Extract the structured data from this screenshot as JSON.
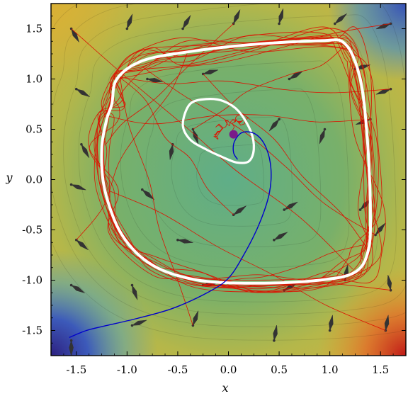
{
  "chart_data": {
    "type": "contour plot with vector field and trajectories",
    "xlabel": "x",
    "ylabel": "y",
    "xlim": [
      -1.75,
      1.75
    ],
    "ylim": [
      -1.75,
      1.75
    ],
    "xticks": [
      -1.5,
      -1.0,
      -0.5,
      0.0,
      0.5,
      1.0,
      1.5
    ],
    "yticks": [
      -1.5,
      -1.0,
      -0.5,
      0.0,
      0.5,
      1.0,
      1.5
    ],
    "xtick_labels": [
      "-1.5",
      "-1.0",
      "-0.5",
      "0.0",
      "0.5",
      "1.0",
      "1.5"
    ],
    "ytick_labels": [
      "-1.5",
      "-1.0",
      "-0.5",
      "0.0",
      "0.5",
      "1.0",
      "1.5"
    ],
    "grid": false,
    "legend": "none",
    "colors": {
      "limit_cycle": "#ffffff",
      "deterministic_trajectory": "#0000cc",
      "stochastic_trajectories": "#dd1100",
      "fixed_point": "#7a1a8a",
      "arrows": "#333333"
    },
    "outer_limit_cycle": [
      [
        -1.15,
        0.75
      ],
      [
        -1.1,
        1.0
      ],
      [
        -0.85,
        1.18
      ],
      [
        -0.4,
        1.27
      ],
      [
        0.2,
        1.34
      ],
      [
        0.9,
        1.38
      ],
      [
        1.15,
        1.35
      ],
      [
        1.3,
        1.0
      ],
      [
        1.37,
        0.4
      ],
      [
        1.4,
        -0.3
      ],
      [
        1.38,
        -0.7
      ],
      [
        1.25,
        -0.92
      ],
      [
        0.9,
        -1.0
      ],
      [
        0.3,
        -1.03
      ],
      [
        -0.3,
        -1.0
      ],
      [
        -0.75,
        -0.85
      ],
      [
        -1.05,
        -0.55
      ],
      [
        -1.22,
        -0.1
      ],
      [
        -1.25,
        0.3
      ],
      [
        -1.2,
        0.6
      ]
    ],
    "inner_limit_cycle": [
      [
        -0.45,
        0.55
      ],
      [
        -0.38,
        0.75
      ],
      [
        -0.22,
        0.8
      ],
      [
        -0.05,
        0.78
      ],
      [
        0.1,
        0.68
      ],
      [
        0.22,
        0.48
      ],
      [
        0.25,
        0.3
      ],
      [
        0.2,
        0.18
      ],
      [
        0.08,
        0.17
      ],
      [
        -0.05,
        0.22
      ],
      [
        -0.22,
        0.3
      ],
      [
        -0.38,
        0.4
      ]
    ],
    "deterministic_trajectory": [
      [
        -1.57,
        -1.57
      ],
      [
        -1.4,
        -1.5
      ],
      [
        -1.2,
        -1.45
      ],
      [
        -0.9,
        -1.38
      ],
      [
        -0.55,
        -1.28
      ],
      [
        -0.2,
        -1.12
      ],
      [
        0.0,
        -0.98
      ],
      [
        0.15,
        -0.75
      ],
      [
        0.3,
        -0.45
      ],
      [
        0.4,
        -0.15
      ],
      [
        0.42,
        0.1
      ],
      [
        0.37,
        0.32
      ],
      [
        0.27,
        0.45
      ],
      [
        0.14,
        0.47
      ],
      [
        0.06,
        0.38
      ],
      [
        0.05,
        0.27
      ],
      [
        0.09,
        0.2
      ]
    ],
    "fixed_point": [
      0.05,
      0.45
    ],
    "vector_field_samples": [
      {
        "x": -1.55,
        "y": 1.5,
        "angle": 300
      },
      {
        "x": -1.0,
        "y": 1.5,
        "angle": 70
      },
      {
        "x": -0.45,
        "y": 1.5,
        "angle": 60
      },
      {
        "x": 0.05,
        "y": 1.55,
        "angle": 65
      },
      {
        "x": 0.5,
        "y": 1.55,
        "angle": 75
      },
      {
        "x": 1.05,
        "y": 1.55,
        "angle": 40
      },
      {
        "x": 1.6,
        "y": 1.55,
        "angle": 200
      },
      {
        "x": -1.5,
        "y": 0.9,
        "angle": 330
      },
      {
        "x": -0.8,
        "y": 1.0,
        "angle": 350
      },
      {
        "x": -0.25,
        "y": 1.05,
        "angle": 15
      },
      {
        "x": 0.6,
        "y": 1.0,
        "angle": 30
      },
      {
        "x": 1.25,
        "y": 1.1,
        "angle": 15
      },
      {
        "x": 1.6,
        "y": 0.9,
        "angle": 200
      },
      {
        "x": -1.45,
        "y": 0.35,
        "angle": 300
      },
      {
        "x": -0.55,
        "y": 0.35,
        "angle": 260
      },
      {
        "x": -0.35,
        "y": 0.5,
        "angle": 290
      },
      {
        "x": 0.5,
        "y": 0.6,
        "angle": 230
      },
      {
        "x": 0.95,
        "y": 0.5,
        "angle": 250
      },
      {
        "x": 1.4,
        "y": 0.6,
        "angle": 200
      },
      {
        "x": -1.55,
        "y": -0.05,
        "angle": 340
      },
      {
        "x": -0.85,
        "y": -0.1,
        "angle": 320
      },
      {
        "x": 0.05,
        "y": -0.35,
        "angle": 35
      },
      {
        "x": 0.55,
        "y": -0.3,
        "angle": 30
      },
      {
        "x": 1.3,
        "y": -0.3,
        "angle": 45
      },
      {
        "x": -1.5,
        "y": -0.6,
        "angle": 320
      },
      {
        "x": -0.5,
        "y": -0.6,
        "angle": 350
      },
      {
        "x": 0.45,
        "y": -0.6,
        "angle": 30
      },
      {
        "x": 1.45,
        "y": -0.55,
        "angle": 50
      },
      {
        "x": -1.55,
        "y": -1.05,
        "angle": 330
      },
      {
        "x": -0.95,
        "y": -1.05,
        "angle": 290
      },
      {
        "x": -0.25,
        "y": -1.05,
        "angle": 10
      },
      {
        "x": 0.55,
        "y": -1.1,
        "angle": 30
      },
      {
        "x": 1.15,
        "y": -1.0,
        "angle": 80
      },
      {
        "x": 1.6,
        "y": -1.1,
        "angle": 100
      },
      {
        "x": -1.55,
        "y": -1.6,
        "angle": 270
      },
      {
        "x": -0.95,
        "y": -1.45,
        "angle": 20
      },
      {
        "x": -0.35,
        "y": -1.45,
        "angle": 70
      },
      {
        "x": 0.45,
        "y": -1.6,
        "angle": 80
      },
      {
        "x": 1.0,
        "y": -1.5,
        "angle": 80
      },
      {
        "x": 1.55,
        "y": -1.5,
        "angle": 80
      }
    ]
  }
}
